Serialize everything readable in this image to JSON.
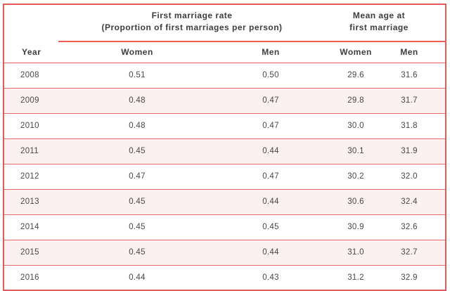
{
  "chart_data": {
    "type": "table",
    "header": {
      "col_year": "Year",
      "group1_line1": "First marriage rate",
      "group1_line2": "(Proportion of first marriages per person)",
      "group2_line1": "Mean age at",
      "group2_line2": "first marriage",
      "sub_columns": [
        "Women",
        "Men",
        "Women",
        "Men"
      ]
    },
    "columns": [
      "Year",
      "First marriage rate - Women",
      "First marriage rate - Men",
      "Mean age at first marriage - Women",
      "Mean age at first marriage - Men"
    ],
    "rows": [
      {
        "year": "2008",
        "rate_women": "0.51",
        "rate_men": "0.50",
        "age_women": "29.6",
        "age_men": "31.6"
      },
      {
        "year": "2009",
        "rate_women": "0.48",
        "rate_men": "0.47",
        "age_women": "29.8",
        "age_men": "31.7"
      },
      {
        "year": "2010",
        "rate_women": "0.48",
        "rate_men": "0.47",
        "age_women": "30.0",
        "age_men": "31.8"
      },
      {
        "year": "2011",
        "rate_women": "0.45",
        "rate_men": "0.44",
        "age_women": "30.1",
        "age_men": "31.9"
      },
      {
        "year": "2012",
        "rate_women": "0.47",
        "rate_men": "0.47",
        "age_women": "30.2",
        "age_men": "32.0"
      },
      {
        "year": "2013",
        "rate_women": "0.45",
        "rate_men": "0.44",
        "age_women": "30.6",
        "age_men": "32.4"
      },
      {
        "year": "2014",
        "rate_women": "0.45",
        "rate_men": "0.45",
        "age_women": "30.9",
        "age_men": "32.6"
      },
      {
        "year": "2015",
        "rate_women": "0.45",
        "rate_men": "0.44",
        "age_women": "31.0",
        "age_men": "32.7"
      },
      {
        "year": "2016",
        "rate_women": "0.44",
        "rate_men": "0.43",
        "age_women": "31.2",
        "age_men": "32.9"
      }
    ]
  },
  "colors": {
    "border_outer": "#e25a5a",
    "border_inner": "#e66967",
    "group_underline": "#f05b56",
    "alt_row_bg": "#fdf0f0",
    "header_text": "#3d3d3d",
    "body_text": "#474747"
  }
}
